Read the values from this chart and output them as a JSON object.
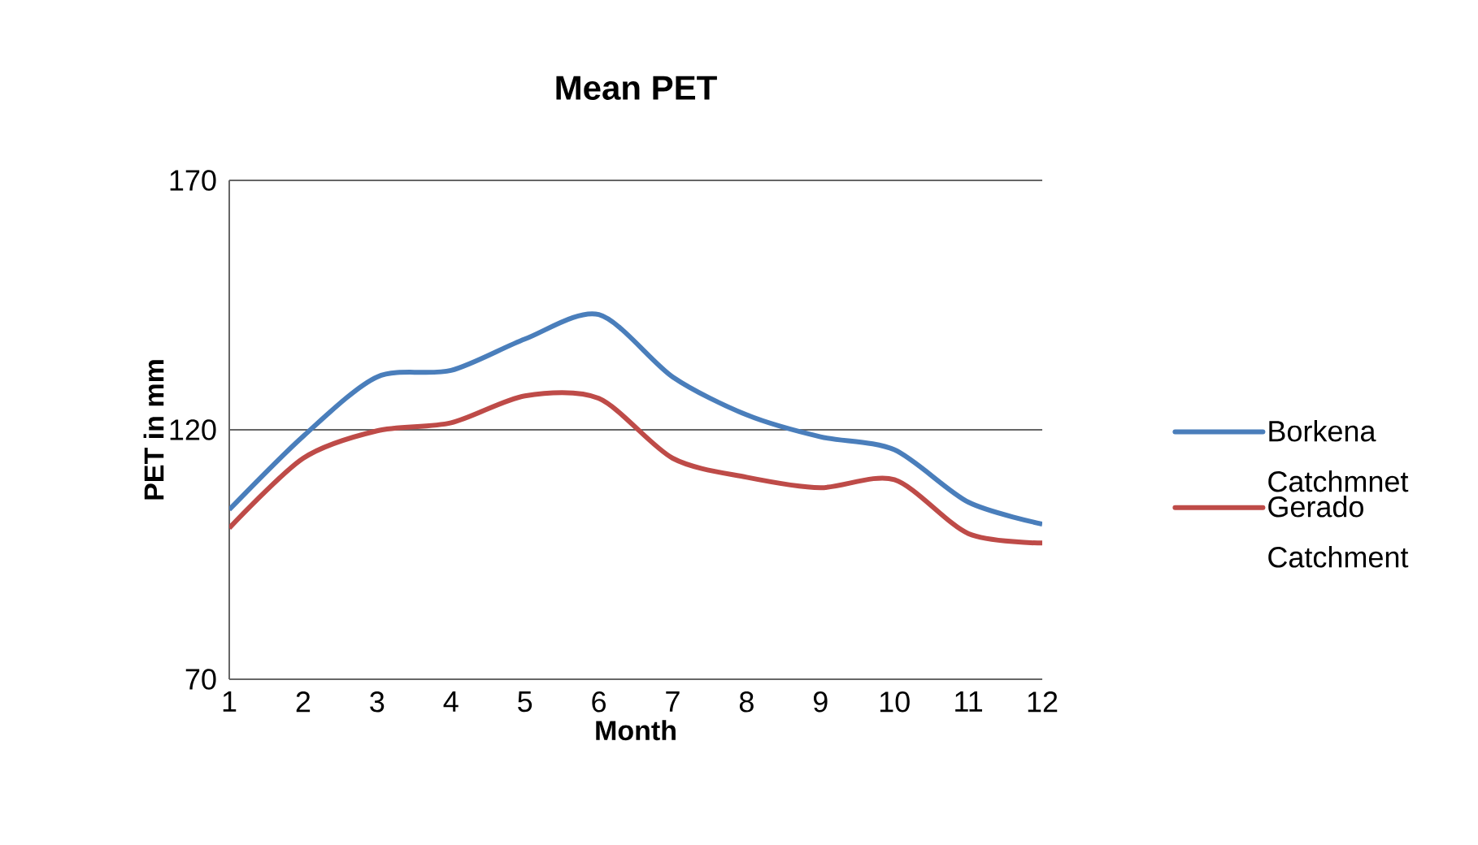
{
  "chart_data": {
    "type": "line",
    "title": "Mean PET",
    "xlabel": "Month",
    "ylabel": "PET in mm",
    "x": [
      1,
      2,
      3,
      4,
      5,
      6,
      7,
      8,
      9,
      10,
      11,
      12
    ],
    "xlim": [
      1,
      12
    ],
    "xticks": [
      1,
      2,
      3,
      4,
      5,
      6,
      7,
      8,
      9,
      10,
      11,
      12
    ],
    "ylim": [
      70,
      170
    ],
    "yticks": [
      70,
      120,
      170
    ],
    "grid": "y",
    "legend": "right",
    "series": [
      {
        "name": "Borkena Catchmnet",
        "color": "#4a7ebb",
        "values": [
          104,
          118.7,
          130.6,
          131.9,
          138.2,
          143.1,
          130.6,
          123,
          118.6,
          116,
          105.5,
          101.1
        ]
      },
      {
        "name": "Gerado Catchment",
        "color": "#be4b48",
        "values": [
          100.3,
          114.3,
          119.8,
          121.4,
          126.8,
          126.3,
          114.3,
          110.5,
          108.4,
          110,
          99.2,
          97.3
        ]
      }
    ]
  }
}
